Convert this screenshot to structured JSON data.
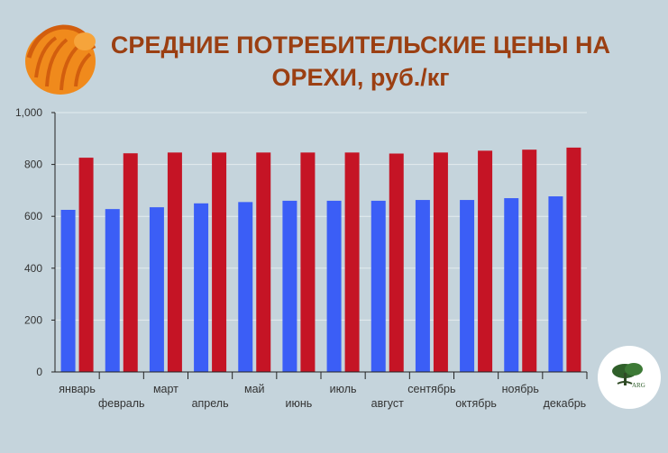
{
  "title": {
    "line1": "СРЕДНИЕ ПОТРЕБИТЕЛЬСКИЕ ЦЕНЫ НА",
    "line2": "ОРЕХИ, руб./кг"
  },
  "logo": {
    "icon": "hazelnut-icon",
    "color": "#f08a1c"
  },
  "badge": {
    "icon": "tree-icon",
    "text": "ARG"
  },
  "colors": {
    "series_a": "#3b5ef6",
    "series_b": "#c51425",
    "background": "#c5d4dc",
    "title": "#9b3f12"
  },
  "chart_data": {
    "type": "bar",
    "categories": [
      "январь",
      "февраль",
      "март",
      "апрель",
      "май",
      "июнь",
      "июль",
      "август",
      "сентябрь",
      "октябрь",
      "ноябрь",
      "декабрь"
    ],
    "series": [
      {
        "values": [
          625,
          628,
          635,
          650,
          655,
          660,
          660,
          660,
          663,
          663,
          670,
          677
        ]
      },
      {
        "values": [
          826,
          843,
          846,
          846,
          846,
          846,
          846,
          842,
          846,
          853,
          857,
          865
        ]
      }
    ],
    "ylim": [
      0,
      1000
    ],
    "yticks": [
      "0",
      "200",
      "400",
      "600",
      "800",
      "1,000"
    ],
    "ytick_values": [
      0,
      200,
      400,
      600,
      800,
      1000
    ],
    "grid": true,
    "xlabel": "",
    "ylabel": ""
  }
}
